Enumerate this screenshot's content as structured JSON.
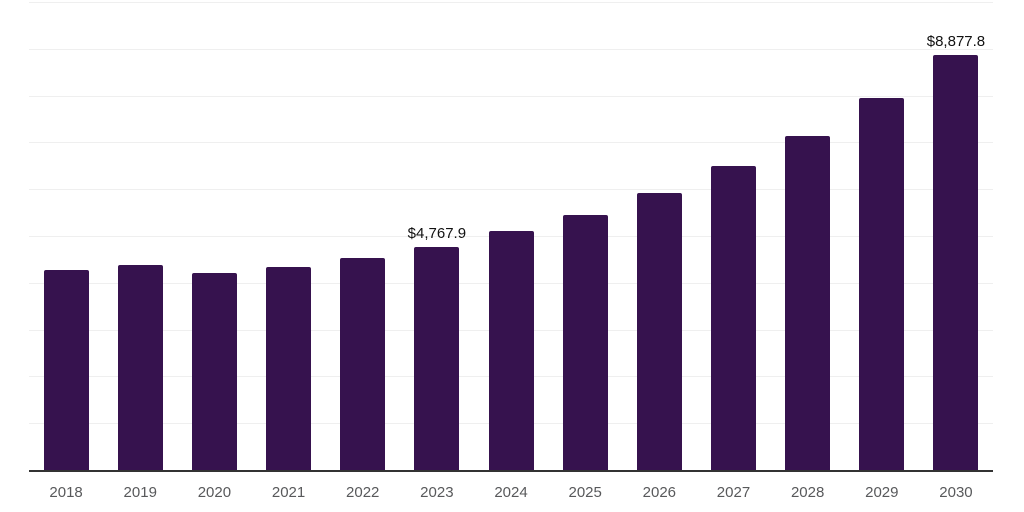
{
  "chart_data": {
    "type": "bar",
    "title": "",
    "xlabel": "",
    "ylabel": "",
    "categories": [
      "2018",
      "2019",
      "2020",
      "2021",
      "2022",
      "2023",
      "2024",
      "2025",
      "2026",
      "2027",
      "2028",
      "2029",
      "2030"
    ],
    "values": [
      4280,
      4370,
      4200,
      4330,
      4540,
      4767.9,
      5100,
      5440,
      5910,
      6490,
      7130,
      7940,
      8877.8
    ],
    "point_labels": [
      "",
      "",
      "",
      "",
      "",
      "$4,767.9",
      "",
      "",
      "",
      "",
      "",
      "",
      "$8,877.8"
    ],
    "ylim": [
      0,
      10000
    ],
    "grid_step": 1000,
    "grid": true,
    "legend": false,
    "colors": {
      "bar": "#36124E",
      "value_label": "#111111",
      "tick_label": "#58595B",
      "gridline": "#EFEFEF",
      "axis": "#333333",
      "background": "#FFFFFF"
    }
  }
}
